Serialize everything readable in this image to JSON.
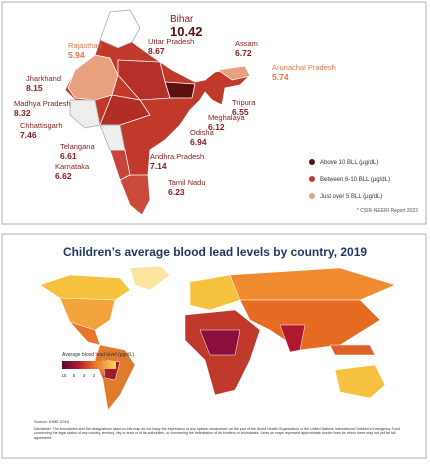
{
  "india_map": {
    "states": [
      {
        "name": "Bihar",
        "value": "10.42"
      },
      {
        "name": "Rajasthan",
        "value": "5.94"
      },
      {
        "name": "Uttar Pradesh",
        "value": "8.67"
      },
      {
        "name": "Assam",
        "value": "6.72"
      },
      {
        "name": "Arunachal Pradesh",
        "value": "5.74"
      },
      {
        "name": "Jharkhand",
        "value": "8.15"
      },
      {
        "name": "Madhya Pradesh",
        "value": "8.32"
      },
      {
        "name": "Chhattisgarh",
        "value": "7.46"
      },
      {
        "name": "Tripura",
        "value": "6.55"
      },
      {
        "name": "Meghalaya",
        "value": "6.12"
      },
      {
        "name": "Odisha",
        "value": "6.94"
      },
      {
        "name": "Telangana",
        "value": "6.61"
      },
      {
        "name": "Karnataka",
        "value": "6.62"
      },
      {
        "name": "Andhra Pradesh",
        "value": "7.14"
      },
      {
        "name": "Tamil Nadu",
        "value": "6.23"
      }
    ],
    "legend": [
      {
        "label": "Above 10 BLL (µg/dL)",
        "color": "#5c1010"
      },
      {
        "label": "Between 6-10 BLL (µg/dL)",
        "color": "#c0392b"
      },
      {
        "label": "Just over 5 BLL (µg/dL)",
        "color": "#e8a07f"
      }
    ],
    "source": "* CSIR-NEERI Report 2022"
  },
  "world_map": {
    "title": "Children’s average blood lead levels by country, 2019",
    "legend_title": "Average blood lead level (µg/dL)",
    "legend_ticks": [
      "15",
      "5",
      "3",
      "2",
      "1",
      "0"
    ],
    "source": "Source: IHME 2019",
    "disclaimer": "Disclaimer: The boundaries and the designations used on this map do not imply the expression of any opinion whatsoever on the part of the World Health Organization or the United Nations International Children’s Emergency Fund concerning the legal status of any country, territory, city or area or of its authorities, or concerning the delimitation of its frontiers or boundaries. Lines on maps represent approximate border lines for which there may not yet be full agreement."
  }
}
